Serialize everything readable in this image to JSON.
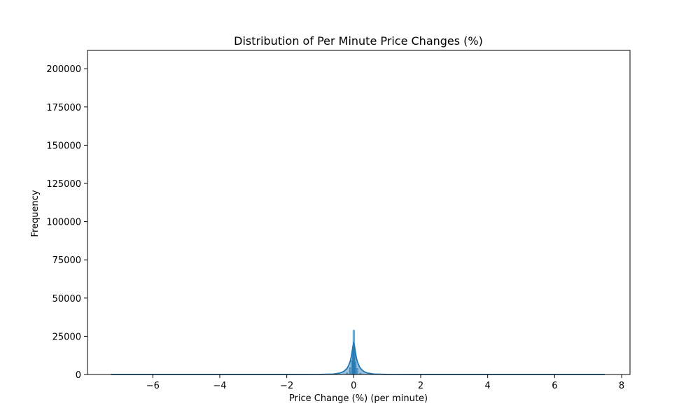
{
  "chart_data": {
    "type": "histogram",
    "title": "Distribution of Per Minute Price Changes (%)",
    "xlabel": "Price Change (%) (per minute)",
    "ylabel": "Frequency",
    "xlim": [
      -7.95,
      8.25
    ],
    "ylim": [
      0,
      212000
    ],
    "xticks": [
      -6,
      -4,
      -2,
      0,
      2,
      4,
      6,
      8
    ],
    "xtick_labels": [
      "−6",
      "−4",
      "−2",
      "0",
      "2",
      "4",
      "6",
      "8"
    ],
    "yticks": [
      0,
      25000,
      50000,
      75000,
      100000,
      125000,
      150000,
      175000,
      200000
    ],
    "ytick_labels": [
      "0",
      "25000",
      "50000",
      "75000",
      "100000",
      "125000",
      "150000",
      "175000",
      "200000"
    ],
    "grid": false,
    "legend": null,
    "bar_color": "#1f77b4",
    "kde_color": "#1f77b4",
    "data_range": [
      -7.25,
      7.5
    ],
    "histogram_peaks": [
      {
        "x": -0.2,
        "y": 1000
      },
      {
        "x": -0.1,
        "y": 4500
      },
      {
        "x": -0.05,
        "y": 9000
      },
      {
        "x": -0.02,
        "y": 18000
      },
      {
        "x": 0.0,
        "y": 29000
      },
      {
        "x": 0.02,
        "y": 17000
      },
      {
        "x": 0.05,
        "y": 8000
      },
      {
        "x": 0.1,
        "y": 4000
      },
      {
        "x": 0.2,
        "y": 900
      }
    ],
    "kde": {
      "x": [
        -7.25,
        -6,
        -4,
        -2,
        -1,
        -0.6,
        -0.4,
        -0.3,
        -0.2,
        -0.15,
        -0.1,
        -0.07,
        -0.04,
        -0.02,
        0,
        0.02,
        0.04,
        0.07,
        0.1,
        0.15,
        0.2,
        0.3,
        0.4,
        0.6,
        1,
        2,
        4,
        6,
        7.5
      ],
      "y": [
        0,
        0,
        0,
        0,
        50,
        300,
        1000,
        2000,
        4000,
        6000,
        9000,
        12000,
        16000,
        19000,
        20500,
        19000,
        16000,
        12000,
        9000,
        6000,
        4000,
        2000,
        1000,
        300,
        50,
        0,
        0,
        0,
        0
      ]
    }
  }
}
